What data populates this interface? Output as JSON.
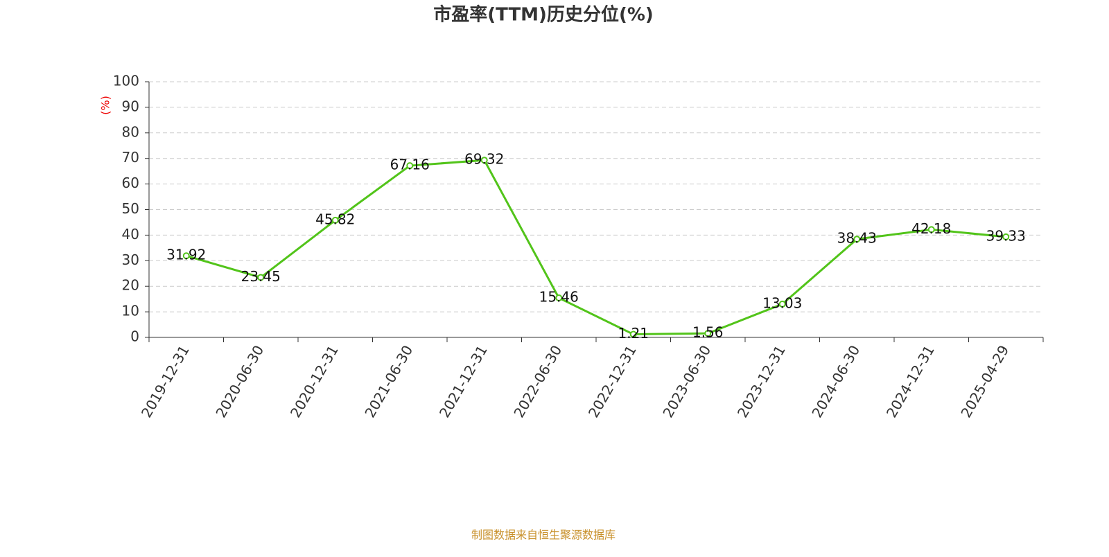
{
  "chart_data": {
    "type": "line",
    "title": "市盈率(TTM)历史分位(%)",
    "y_label": "(%)",
    "categories": [
      "2019-12-31",
      "2020-06-30",
      "2020-12-31",
      "2021-06-30",
      "2021-12-31",
      "2022-06-30",
      "2022-12-31",
      "2023-06-30",
      "2023-12-31",
      "2024-06-30",
      "2024-12-31",
      "2025-04-29"
    ],
    "values": [
      31.92,
      23.45,
      45.82,
      67.16,
      69.32,
      15.46,
      1.21,
      1.56,
      13.03,
      38.43,
      42.18,
      39.33
    ],
    "color": "#52c41a",
    "ylim": [
      0,
      100
    ],
    "yticks": [
      0,
      10,
      20,
      30,
      40,
      50,
      60,
      70,
      80,
      90,
      100
    ],
    "grid": true,
    "source": "制图数据来自恒生聚源数据库"
  }
}
